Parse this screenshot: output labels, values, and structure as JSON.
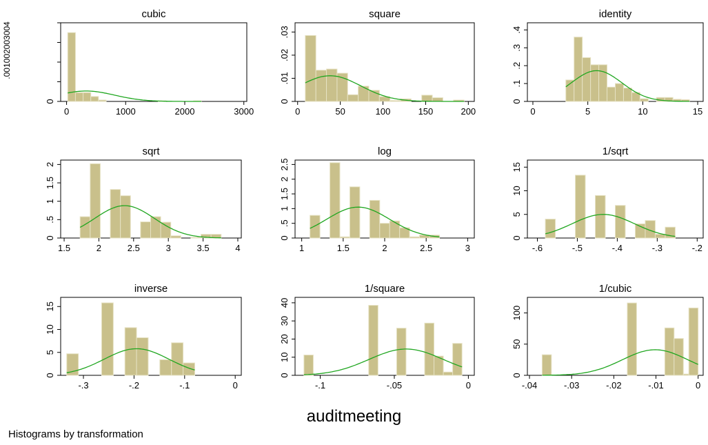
{
  "figure": {
    "xlabel": "auditmeeting",
    "caption": "Histograms by transformation",
    "bar_color": "#c9c08b",
    "bar_edge": "#e6e2c4",
    "curve_color": "#1fa61f"
  },
  "chart_data": [
    {
      "type": "bar",
      "title": "cubic",
      "xlim": [
        -100,
        3050
      ],
      "ylim": [
        0,
        0.004
      ],
      "xticks": [
        0,
        1000,
        2000,
        3000
      ],
      "xtick_labels": [
        "0",
        "1000",
        "2000",
        "3000"
      ],
      "yticks": [
        0,
        0.001,
        0.002,
        0.003,
        0.004
      ],
      "ytick_labels": [
        ".001002003004"
      ],
      "ytick_labels_combined": true,
      "bins": [
        [
          20,
          150,
          0.0035
        ],
        [
          150,
          280,
          0.00045
        ],
        [
          280,
          410,
          0.00045
        ],
        [
          410,
          540,
          0.00025
        ],
        [
          540,
          670,
          7e-05
        ],
        [
          1550,
          1680,
          3e-05
        ],
        [
          2150,
          2280,
          3e-05
        ]
      ],
      "normal": {
        "mean": 330,
        "sd": 480,
        "scale": 0.00053
      }
    },
    {
      "type": "bar",
      "title": "square",
      "xlim": [
        -3,
        207
      ],
      "ylim": [
        0,
        0.034
      ],
      "xticks": [
        0,
        50,
        100,
        150,
        200
      ],
      "xtick_labels": [
        "0",
        "50",
        "100",
        "150",
        "200"
      ],
      "yticks": [
        0,
        0.01,
        0.02,
        0.03
      ],
      "ytick_labels": [
        "0",
        ".01",
        ".02",
        ".03"
      ],
      "bins": [
        [
          9,
          21.4,
          0.0285
        ],
        [
          21.4,
          33.8,
          0.0135
        ],
        [
          33.8,
          46.2,
          0.014
        ],
        [
          46.2,
          58.6,
          0.0122
        ],
        [
          58.6,
          71,
          0.0029
        ],
        [
          71,
          83.4,
          0.0066
        ],
        [
          83.4,
          95.8,
          0.0048
        ],
        [
          95.8,
          108.2,
          0.0021
        ],
        [
          108.2,
          120.6,
          0.0004
        ],
        [
          120.6,
          133,
          0.0011
        ],
        [
          145.4,
          157.8,
          0.0027
        ],
        [
          157.8,
          170.2,
          0.0016
        ],
        [
          182.6,
          195,
          0.0006
        ]
      ],
      "normal": {
        "mean": 38,
        "sd": 36,
        "scale": 0.0111
      }
    },
    {
      "type": "bar",
      "title": "identity",
      "xlim": [
        -0.5,
        15.5
      ],
      "ylim": [
        0,
        0.44
      ],
      "xticks": [
        0,
        5,
        10,
        15
      ],
      "xtick_labels": [
        "0",
        "5",
        "10",
        "15"
      ],
      "yticks": [
        0,
        0.1,
        0.2,
        0.3,
        0.4
      ],
      "ytick_labels": [
        "0",
        ".1",
        ".2",
        ".3",
        ".4"
      ],
      "bins": [
        [
          3,
          3.75,
          0.12
        ],
        [
          3.75,
          4.5,
          0.36
        ],
        [
          4.5,
          5.25,
          0.245
        ],
        [
          5.25,
          6,
          0.205
        ],
        [
          6,
          6.75,
          0.205
        ],
        [
          6.75,
          7.5,
          0.08
        ],
        [
          7.5,
          8.25,
          0.1
        ],
        [
          8.25,
          9,
          0.075
        ],
        [
          9,
          9.75,
          0.05
        ],
        [
          9.75,
          10.5,
          0.015
        ],
        [
          11.25,
          12,
          0.022
        ],
        [
          12,
          12.75,
          0.022
        ],
        [
          12.75,
          13.5,
          0.012
        ],
        [
          13.5,
          14.25,
          0.01
        ]
      ],
      "normal": {
        "mean": 5.8,
        "sd": 2.3,
        "scale": 0.172
      }
    },
    {
      "type": "bar",
      "title": "sqrt",
      "xlim": [
        1.45,
        4.05
      ],
      "ylim": [
        0,
        2.12
      ],
      "xticks": [
        1.5,
        2,
        2.5,
        3,
        3.5,
        4
      ],
      "xtick_labels": [
        "1.5",
        "2",
        "2.5",
        "3",
        "3.5",
        "4"
      ],
      "yticks": [
        0,
        0.5,
        1,
        1.5,
        2
      ],
      "ytick_labels": [
        "0",
        ".5",
        "1",
        "1.5",
        "2"
      ],
      "bins": [
        [
          1.73,
          1.875,
          0.58
        ],
        [
          1.875,
          2.02,
          2.02
        ],
        [
          2.165,
          2.31,
          1.32
        ],
        [
          2.31,
          2.455,
          1.15
        ],
        [
          2.6,
          2.745,
          0.44
        ],
        [
          2.745,
          2.89,
          0.58
        ],
        [
          2.89,
          3.035,
          0.43
        ],
        [
          3.035,
          3.18,
          0.06
        ],
        [
          3.325,
          3.47,
          0.02
        ],
        [
          3.47,
          3.615,
          0.1
        ],
        [
          3.615,
          3.76,
          0.1
        ]
      ],
      "normal": {
        "mean": 2.37,
        "sd": 0.43,
        "scale": 0.88
      }
    },
    {
      "type": "bar",
      "title": "log",
      "xlim": [
        0.92,
        3.08
      ],
      "ylim": [
        0,
        2.65
      ],
      "xticks": [
        1,
        1.5,
        2,
        2.5,
        3
      ],
      "xtick_labels": [
        "1",
        "1.5",
        "2",
        "2.5",
        "3"
      ],
      "yticks": [
        0,
        0.5,
        1,
        1.5,
        2,
        2.5
      ],
      "ytick_labels": [
        "0",
        ".5",
        "1",
        "1.5",
        "2",
        "2.5"
      ],
      "bins": [
        [
          1.1,
          1.22,
          0.77
        ],
        [
          1.34,
          1.46,
          2.56
        ],
        [
          1.46,
          1.58,
          0.04
        ],
        [
          1.58,
          1.7,
          1.74
        ],
        [
          1.82,
          1.94,
          1.28
        ],
        [
          1.94,
          2.06,
          0.5
        ],
        [
          2.06,
          2.18,
          0.58
        ],
        [
          2.18,
          2.3,
          0.35
        ],
        [
          2.3,
          2.42,
          0.04
        ],
        [
          2.42,
          2.54,
          0.1
        ],
        [
          2.54,
          2.66,
          0.1
        ]
      ],
      "normal": {
        "mean": 1.68,
        "sd": 0.38,
        "scale": 1.05
      }
    },
    {
      "type": "bar",
      "title": "1/sqrt",
      "xlim": [
        -0.625,
        -0.185
      ],
      "ylim": [
        0,
        16.5
      ],
      "xticks": [
        -0.6,
        -0.5,
        -0.4,
        -0.3,
        -0.2
      ],
      "xtick_labels": [
        "-.6",
        "-.5",
        "-.4",
        "-.3",
        "-.2"
      ],
      "yticks": [
        0,
        5,
        10,
        15
      ],
      "ytick_labels": [
        "0",
        "5",
        "10",
        "15"
      ],
      "bins": [
        [
          -0.58,
          -0.555,
          4.0
        ],
        [
          -0.505,
          -0.48,
          13.3
        ],
        [
          -0.455,
          -0.43,
          9.0
        ],
        [
          -0.405,
          -0.38,
          6.9
        ],
        [
          -0.355,
          -0.33,
          3.0
        ],
        [
          -0.33,
          -0.305,
          3.7
        ],
        [
          -0.305,
          -0.28,
          0.8
        ],
        [
          -0.28,
          -0.255,
          2.3
        ]
      ],
      "normal": {
        "mean": -0.435,
        "sd": 0.078,
        "scale": 5.0
      }
    },
    {
      "type": "bar",
      "title": "inverse",
      "xlim": [
        -0.345,
        0.012
      ],
      "ylim": [
        0,
        17
      ],
      "xticks": [
        -0.3,
        -0.2,
        -0.1,
        0
      ],
      "xtick_labels": [
        "-.3",
        "-.2",
        "-.1",
        "0"
      ],
      "yticks": [
        0,
        5,
        10,
        15
      ],
      "ytick_labels": [
        "0",
        "5",
        "10",
        "15"
      ],
      "bins": [
        [
          -0.333,
          -0.31,
          4.7
        ],
        [
          -0.264,
          -0.241,
          15.8
        ],
        [
          -0.218,
          -0.195,
          10.4
        ],
        [
          -0.195,
          -0.172,
          8.2
        ],
        [
          -0.149,
          -0.126,
          3.4
        ],
        [
          -0.126,
          -0.103,
          7.1
        ],
        [
          -0.103,
          -0.08,
          2.7
        ]
      ],
      "normal": {
        "mean": -0.195,
        "sd": 0.064,
        "scale": 5.8
      }
    },
    {
      "type": "bar",
      "title": "1/square",
      "xlim": [
        -0.117,
        0.004
      ],
      "ylim": [
        0,
        43
      ],
      "xticks": [
        -0.1,
        -0.05,
        0
      ],
      "xtick_labels": [
        "-.1",
        "-.05",
        "0"
      ],
      "yticks": [
        0,
        10,
        20,
        30,
        40
      ],
      "ytick_labels": [
        "0",
        "10",
        "20",
        "30",
        "40"
      ],
      "bins": [
        [
          -0.111,
          -0.1047,
          11.2
        ],
        [
          -0.0673,
          -0.061,
          38.6
        ],
        [
          -0.0484,
          -0.0421,
          26.0
        ],
        [
          -0.0295,
          -0.0232,
          28.8
        ],
        [
          -0.0232,
          -0.0169,
          10.6
        ],
        [
          -0.0169,
          -0.0106,
          1.8
        ],
        [
          -0.0106,
          -0.0043,
          17.6
        ]
      ],
      "normal": {
        "mean": -0.042,
        "sd": 0.025,
        "scale": 14.5
      }
    },
    {
      "type": "bar",
      "title": "1/cubic",
      "xlim": [
        -0.0405,
        0.0012
      ],
      "ylim": [
        0,
        125
      ],
      "xticks": [
        -0.04,
        -0.03,
        -0.02,
        -0.01,
        0
      ],
      "xtick_labels": [
        "-.04",
        "-.03",
        "-.02",
        "-.01",
        "0"
      ],
      "yticks": [
        0,
        50,
        100
      ],
      "ytick_labels": [
        "0",
        "50",
        "100"
      ],
      "bins": [
        [
          -0.037,
          -0.0348,
          33
        ],
        [
          -0.0168,
          -0.0146,
          116
        ],
        [
          -0.0079,
          -0.0057,
          76
        ],
        [
          -0.0057,
          -0.0035,
          59
        ],
        [
          -0.0035,
          -0.0013,
          2
        ],
        [
          -0.0022,
          0,
          108
        ]
      ],
      "normal": {
        "mean": -0.0102,
        "sd": 0.0078,
        "scale": 41
      }
    }
  ]
}
